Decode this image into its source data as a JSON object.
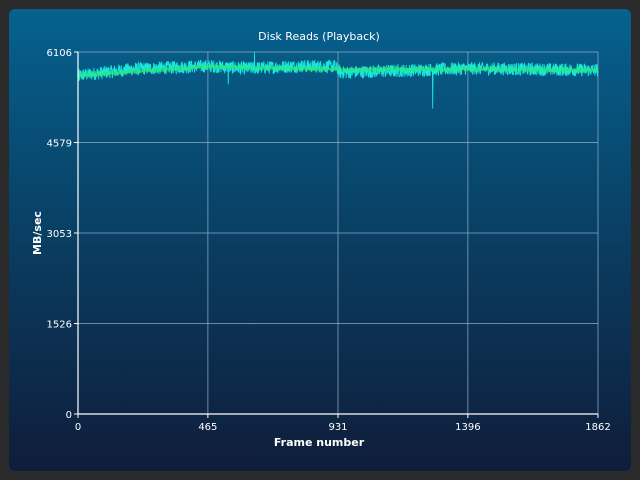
{
  "chart_data": {
    "type": "line",
    "title": "Disk Reads (Playback)",
    "xlabel": "Frame number",
    "ylabel": "MB/sec",
    "xlim": [
      0,
      1862
    ],
    "ylim": [
      0,
      6106
    ],
    "x_ticks": [
      "0",
      "465",
      "931",
      "1396",
      "1862"
    ],
    "y_ticks": [
      "0",
      "1526",
      "3053",
      "4579",
      "6106"
    ],
    "grid": true,
    "series": [
      {
        "color": "#18f0e0",
        "trend": [
          {
            "x": 0,
            "y": 5710
          },
          {
            "x": 200,
            "y": 5820
          },
          {
            "x": 465,
            "y": 5870
          },
          {
            "x": 600,
            "y": 5830
          },
          {
            "x": 800,
            "y": 5870
          },
          {
            "x": 920,
            "y": 5860
          },
          {
            "x": 940,
            "y": 5760
          },
          {
            "x": 1150,
            "y": 5790
          },
          {
            "x": 1396,
            "y": 5830
          },
          {
            "x": 1862,
            "y": 5800
          }
        ],
        "noise_amplitude": 110,
        "spikes": [
          {
            "x": 4,
            "y": 5620
          },
          {
            "x": 538,
            "y": 5560
          },
          {
            "x": 632,
            "y": 6100
          },
          {
            "x": 1270,
            "y": 5150
          }
        ]
      },
      {
        "color": "#2ee87a",
        "trend": [
          {
            "x": 0,
            "y": 5710
          },
          {
            "x": 465,
            "y": 5860
          },
          {
            "x": 931,
            "y": 5810
          },
          {
            "x": 1396,
            "y": 5820
          },
          {
            "x": 1862,
            "y": 5800
          }
        ],
        "noise_amplitude": 25
      }
    ]
  }
}
